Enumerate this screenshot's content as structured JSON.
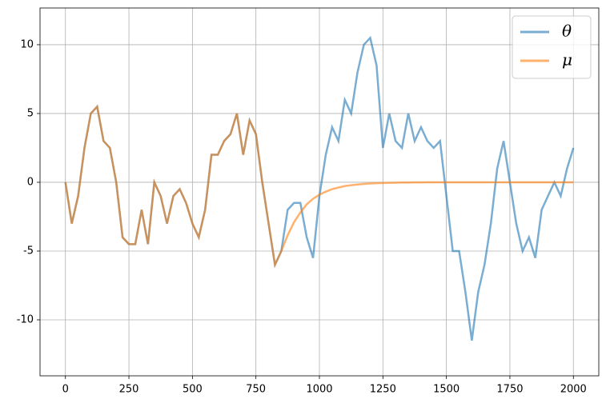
{
  "chart_data": {
    "type": "line",
    "x": [
      0,
      25,
      50,
      75,
      100,
      125,
      150,
      175,
      200,
      225,
      250,
      275,
      300,
      325,
      350,
      375,
      400,
      425,
      450,
      475,
      500,
      525,
      550,
      575,
      600,
      625,
      650,
      675,
      700,
      725,
      750,
      775,
      800,
      825,
      850,
      875,
      900,
      925,
      950,
      975,
      1000,
      1025,
      1050,
      1075,
      1100,
      1125,
      1150,
      1175,
      1200,
      1225,
      1250,
      1275,
      1300,
      1325,
      1350,
      1375,
      1400,
      1425,
      1450,
      1475,
      1500,
      1525,
      1550,
      1575,
      1600,
      1625,
      1650,
      1675,
      1700,
      1725,
      1750,
      1775,
      1800,
      1825,
      1850,
      1875,
      1900,
      1925,
      1950,
      1975,
      2000
    ],
    "series": [
      {
        "name": "θ",
        "color": "#1f77b4",
        "values": [
          0,
          -3,
          -1,
          2.5,
          5,
          5.5,
          3,
          2.5,
          0,
          -4,
          -4.5,
          -4.5,
          -2,
          -4.5,
          0,
          -1,
          -3,
          -1,
          -0.5,
          -1.5,
          -3,
          -4,
          -2,
          2,
          2,
          3,
          3.5,
          5,
          2,
          4.5,
          3.5,
          0,
          -3,
          -6,
          -5,
          -2,
          -1.5,
          -1.5,
          -4,
          -5.5,
          -1,
          2,
          4,
          3,
          6,
          5,
          8,
          10,
          10.5,
          8.5,
          2.5,
          5,
          3,
          2.5,
          5,
          3,
          4,
          3,
          2.5,
          3,
          -1,
          -5,
          -5,
          -8,
          -11.5,
          -8,
          -6,
          -3,
          1,
          3,
          0,
          -3,
          -5,
          -4,
          -5.5,
          -2,
          -1,
          0,
          -1,
          1,
          2.5
        ]
      },
      {
        "name": "μ",
        "color": "#ff7f0e",
        "values": [
          0,
          -3,
          -1,
          2.5,
          5,
          5.5,
          3,
          2.5,
          0,
          -4,
          -4.5,
          -4.5,
          -2,
          -4.5,
          0,
          -1,
          -3,
          -1,
          -0.5,
          -1.5,
          -3,
          -4,
          -2,
          2,
          2,
          3,
          3.5,
          5,
          2,
          4.5,
          3.5,
          0,
          -3,
          -6,
          -5,
          -3.85,
          -2.9,
          -2.2,
          -1.6,
          -1.2,
          -0.9,
          -0.68,
          -0.5,
          -0.38,
          -0.28,
          -0.21,
          -0.16,
          -0.12,
          -0.09,
          -0.07,
          -0.05,
          -0.04,
          -0.03,
          -0.02,
          -0.02,
          -0.01,
          -0.01,
          0,
          0,
          0,
          0,
          0,
          0,
          0,
          0,
          0,
          0,
          0,
          0,
          0,
          0,
          0,
          0,
          0,
          0,
          0,
          0,
          0,
          0,
          0,
          0
        ]
      }
    ],
    "xlim": [
      -100,
      2100
    ],
    "xticks": [
      0,
      250,
      500,
      750,
      1000,
      1250,
      1500,
      1750,
      2000
    ],
    "ylim": [
      -14.07,
      12.67
    ],
    "yticks": [
      -10,
      -5,
      0,
      5,
      10
    ],
    "grid": true,
    "legend": "upper right"
  }
}
